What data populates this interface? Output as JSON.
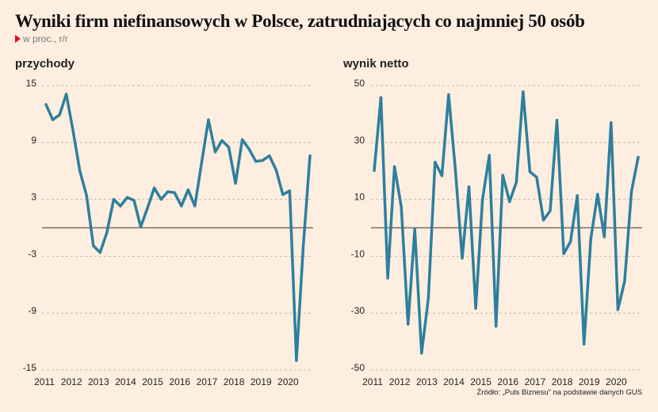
{
  "title": "Wyniki firm niefinansowych w Polsce, zatrudniających co najmniej 50 osób",
  "subtitle": "w proc., r/r",
  "source": "Źródło: „Puls Biznesu” na podstawie danych GUS",
  "colors": {
    "background": "#fdeee0",
    "line": "#2e7f9e",
    "zero_line": "#7a6a60",
    "grid": "#b8aaa0",
    "marker": "#e3001b"
  },
  "chart_data": [
    {
      "type": "line",
      "title": "przychody",
      "x_ticks": [
        "2011",
        "2012",
        "2013",
        "2014",
        "2015",
        "2016",
        "2017",
        "2018",
        "2019",
        "2020"
      ],
      "x_frequency": "quarterly",
      "x_range": [
        "2011Q1",
        "2020Q4"
      ],
      "y_ticks": [
        15,
        9,
        3,
        -3,
        -9,
        -15
      ],
      "ylim": [
        -15,
        15
      ],
      "grid": "horizontal dashed",
      "values": [
        13.0,
        11.4,
        11.9,
        14.1,
        10.2,
        6.0,
        3.4,
        -1.9,
        -2.6,
        -0.5,
        3.0,
        2.3,
        3.2,
        2.9,
        0.1,
        2.1,
        4.2,
        3.0,
        3.8,
        3.7,
        2.3,
        4.0,
        2.3,
        6.9,
        11.4,
        8.0,
        9.2,
        8.5,
        4.7,
        9.3,
        8.3,
        7.0,
        7.1,
        7.6,
        6.1,
        3.5,
        3.9,
        -14.0,
        -2.0,
        7.6
      ]
    },
    {
      "type": "line",
      "title": "wynik netto",
      "x_ticks": [
        "2011",
        "2012",
        "2013",
        "2014",
        "2015",
        "2016",
        "2017",
        "2018",
        "2019",
        "2020"
      ],
      "x_frequency": "quarterly",
      "x_range": [
        "2011Q1",
        "2020Q4"
      ],
      "y_ticks": [
        50,
        30,
        10,
        -10,
        -30,
        -50
      ],
      "ylim": [
        -50,
        50
      ],
      "grid": "horizontal dashed",
      "values": [
        20.1,
        45.8,
        -17.7,
        21.5,
        7.3,
        -33.9,
        -0.5,
        -44.1,
        -24.9,
        23.1,
        18.3,
        46.8,
        20.1,
        -10.7,
        14.4,
        -28.3,
        9.9,
        25.5,
        -34.6,
        18.5,
        9.2,
        16.0,
        47.8,
        19.7,
        17.8,
        2.7,
        6.0,
        37.8,
        -9.1,
        -4.9,
        11.3,
        -40.9,
        -4.0,
        11.8,
        -3.2,
        37.0,
        -28.8,
        -18.8,
        12.7,
        24.8
      ]
    }
  ]
}
